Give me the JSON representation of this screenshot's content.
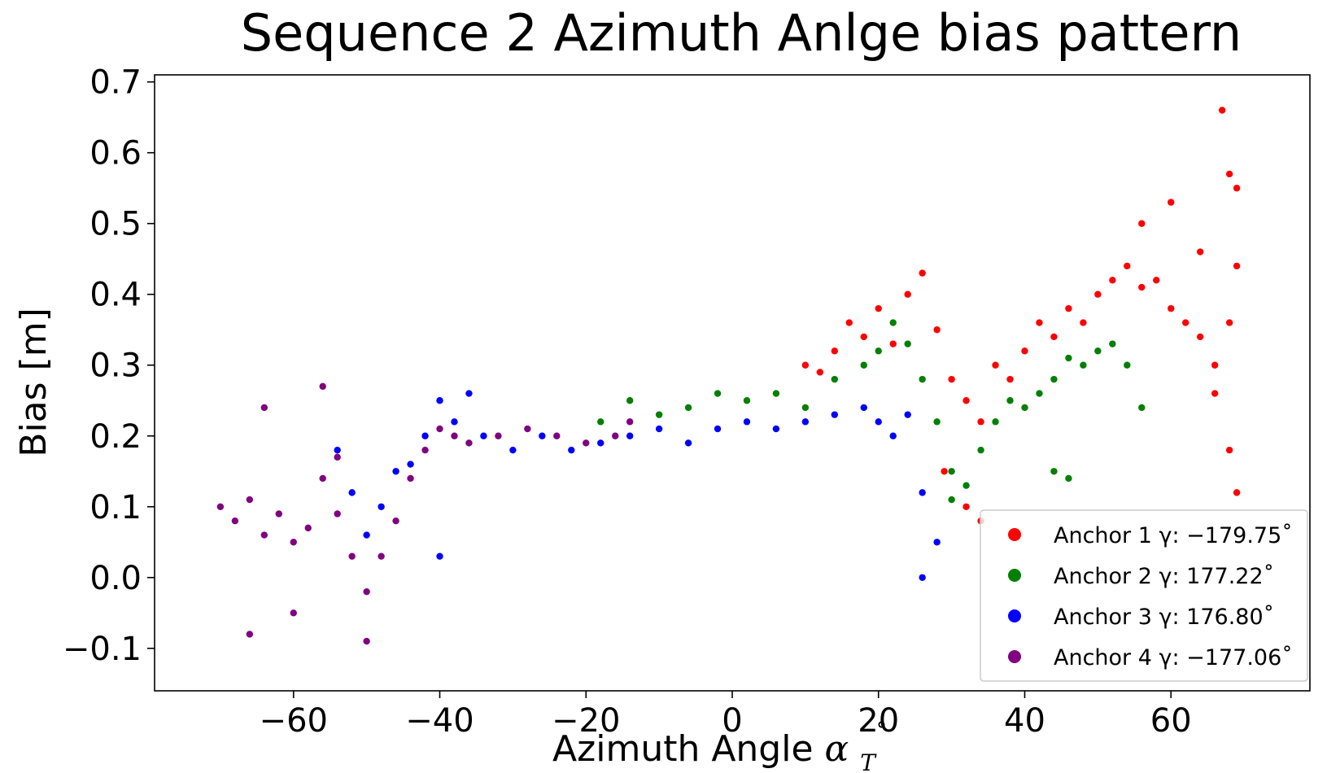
{
  "chart_data": {
    "type": "scatter",
    "title": "Sequence 2 Azimuth Anlge bias pattern",
    "xlabel": "Azimuth Angle",
    "xlabel_symbol": "α",
    "xlabel_subscript": "T",
    "xlabel_degree": "˚",
    "ylabel": "Bias [m]",
    "xlim": [
      -79,
      79
    ],
    "ylim": [
      -0.16,
      0.71
    ],
    "xticks": [
      -60,
      -40,
      -20,
      0,
      20,
      40,
      60
    ],
    "xtick_labels": [
      "−60",
      "−40",
      "−20",
      "0",
      "20",
      "40",
      "60"
    ],
    "yticks": [
      -0.1,
      0.0,
      0.1,
      0.2,
      0.3,
      0.4,
      0.5,
      0.6,
      0.7
    ],
    "ytick_labels": [
      "−0.1",
      "0.0",
      "0.1",
      "0.2",
      "0.3",
      "0.4",
      "0.5",
      "0.6",
      "0.7"
    ],
    "grid": false,
    "legend_position": "lower-right",
    "series": [
      {
        "name": "Anchor 1",
        "legend_text": "Anchor 1 γ: −179.75˚",
        "color": "#ff0000",
        "points": [
          [
            10,
            0.3
          ],
          [
            12,
            0.29
          ],
          [
            14,
            0.32
          ],
          [
            16,
            0.36
          ],
          [
            18,
            0.34
          ],
          [
            20,
            0.38
          ],
          [
            22,
            0.33
          ],
          [
            24,
            0.4
          ],
          [
            26,
            0.43
          ],
          [
            28,
            0.35
          ],
          [
            30,
            0.28
          ],
          [
            32,
            0.25
          ],
          [
            34,
            0.22
          ],
          [
            36,
            0.3
          ],
          [
            38,
            0.28
          ],
          [
            40,
            0.32
          ],
          [
            42,
            0.36
          ],
          [
            44,
            0.34
          ],
          [
            46,
            0.38
          ],
          [
            48,
            0.36
          ],
          [
            50,
            0.4
          ],
          [
            52,
            0.42
          ],
          [
            54,
            0.44
          ],
          [
            56,
            0.41
          ],
          [
            58,
            0.42
          ],
          [
            60,
            0.38
          ],
          [
            62,
            0.36
          ],
          [
            64,
            0.34
          ],
          [
            66,
            0.3
          ],
          [
            68,
            0.36
          ],
          [
            69,
            0.44
          ],
          [
            69,
            0.55
          ],
          [
            68,
            0.57
          ],
          [
            67,
            0.66
          ],
          [
            60,
            0.53
          ],
          [
            56,
            0.5
          ],
          [
            64,
            0.46
          ],
          [
            66,
            0.26
          ],
          [
            68,
            0.18
          ],
          [
            69,
            0.12
          ],
          [
            32,
            0.1
          ],
          [
            34,
            0.08
          ],
          [
            29,
            0.15
          ]
        ]
      },
      {
        "name": "Anchor 2",
        "legend_text": "Anchor 2 γ: 177.22˚",
        "color": "#008000",
        "points": [
          [
            -18,
            0.22
          ],
          [
            -14,
            0.25
          ],
          [
            -10,
            0.23
          ],
          [
            -6,
            0.24
          ],
          [
            -2,
            0.26
          ],
          [
            2,
            0.25
          ],
          [
            6,
            0.26
          ],
          [
            10,
            0.24
          ],
          [
            14,
            0.28
          ],
          [
            18,
            0.3
          ],
          [
            20,
            0.32
          ],
          [
            22,
            0.36
          ],
          [
            24,
            0.33
          ],
          [
            26,
            0.28
          ],
          [
            28,
            0.22
          ],
          [
            30,
            0.15
          ],
          [
            32,
            0.13
          ],
          [
            34,
            0.18
          ],
          [
            36,
            0.22
          ],
          [
            38,
            0.25
          ],
          [
            40,
            0.24
          ],
          [
            42,
            0.26
          ],
          [
            44,
            0.28
          ],
          [
            46,
            0.31
          ],
          [
            48,
            0.3
          ],
          [
            50,
            0.32
          ],
          [
            52,
            0.33
          ],
          [
            54,
            0.3
          ],
          [
            56,
            0.24
          ],
          [
            44,
            0.15
          ],
          [
            46,
            0.14
          ],
          [
            30,
            0.11
          ]
        ]
      },
      {
        "name": "Anchor 3",
        "legend_text": "Anchor 3 γ: 176.80˚",
        "color": "#0000ff",
        "points": [
          [
            -54,
            0.18
          ],
          [
            -52,
            0.12
          ],
          [
            -50,
            0.06
          ],
          [
            -48,
            0.1
          ],
          [
            -46,
            0.15
          ],
          [
            -44,
            0.16
          ],
          [
            -42,
            0.2
          ],
          [
            -40,
            0.25
          ],
          [
            -40,
            0.03
          ],
          [
            -38,
            0.22
          ],
          [
            -36,
            0.26
          ],
          [
            -34,
            0.2
          ],
          [
            -30,
            0.18
          ],
          [
            -26,
            0.2
          ],
          [
            -22,
            0.18
          ],
          [
            -18,
            0.19
          ],
          [
            -14,
            0.2
          ],
          [
            -10,
            0.21
          ],
          [
            -6,
            0.19
          ],
          [
            -2,
            0.21
          ],
          [
            2,
            0.22
          ],
          [
            6,
            0.21
          ],
          [
            10,
            0.22
          ],
          [
            14,
            0.23
          ],
          [
            18,
            0.24
          ],
          [
            20,
            0.22
          ],
          [
            22,
            0.2
          ],
          [
            24,
            0.23
          ],
          [
            26,
            0.12
          ],
          [
            28,
            0.05
          ],
          [
            26,
            0.0
          ]
        ]
      },
      {
        "name": "Anchor 4",
        "legend_text": "Anchor 4 γ: −177.06˚",
        "color": "#800080",
        "points": [
          [
            -70,
            0.1
          ],
          [
            -68,
            0.08
          ],
          [
            -66,
            0.11
          ],
          [
            -64,
            0.06
          ],
          [
            -62,
            0.09
          ],
          [
            -60,
            0.05
          ],
          [
            -58,
            0.07
          ],
          [
            -56,
            0.14
          ],
          [
            -54,
            0.17
          ],
          [
            -54,
            0.09
          ],
          [
            -52,
            0.03
          ],
          [
            -50,
            -0.02
          ],
          [
            -50,
            -0.09
          ],
          [
            -48,
            0.03
          ],
          [
            -46,
            0.08
          ],
          [
            -44,
            0.14
          ],
          [
            -42,
            0.18
          ],
          [
            -40,
            0.21
          ],
          [
            -38,
            0.2
          ],
          [
            -36,
            0.19
          ],
          [
            -32,
            0.2
          ],
          [
            -28,
            0.21
          ],
          [
            -24,
            0.2
          ],
          [
            -20,
            0.19
          ],
          [
            -16,
            0.2
          ],
          [
            -14,
            0.22
          ],
          [
            -64,
            0.24
          ],
          [
            -56,
            0.27
          ],
          [
            -60,
            -0.05
          ],
          [
            -66,
            -0.08
          ]
        ]
      }
    ]
  }
}
